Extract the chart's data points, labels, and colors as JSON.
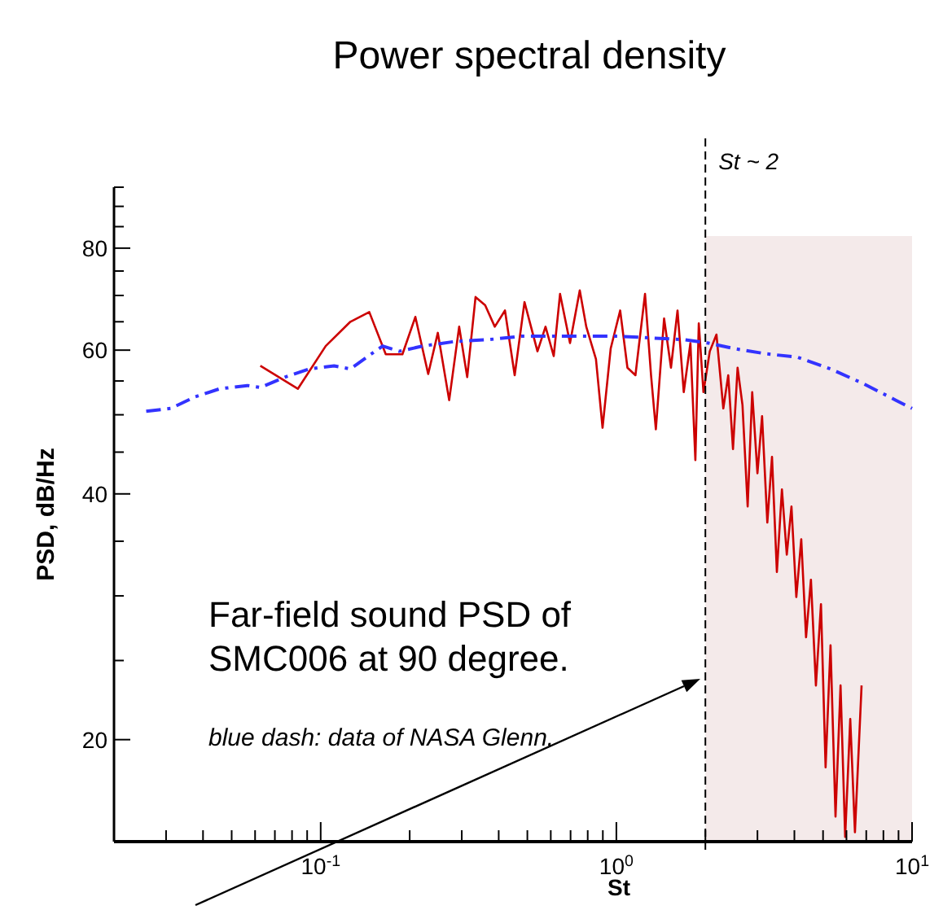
{
  "chart_data": {
    "type": "line",
    "title": "Power spectral density",
    "xlabel": "St",
    "ylabel": "PSD, dB/Hz",
    "log": "xy",
    "xlim": [
      0.02,
      10
    ],
    "ylim": [
      15,
      95
    ],
    "xticks": [
      {
        "value": 0.02,
        "label": null
      },
      {
        "value": 0.03,
        "label": null
      },
      {
        "value": 0.04,
        "label": null
      },
      {
        "value": 0.05,
        "label": null
      },
      {
        "value": 0.06,
        "label": null
      },
      {
        "value": 0.07,
        "label": null
      },
      {
        "value": 0.08,
        "label": null
      },
      {
        "value": 0.09,
        "label": null
      },
      {
        "value": 0.1,
        "label": "10$^{-1}$"
      },
      {
        "value": 0.2,
        "label": null
      },
      {
        "value": 0.3,
        "label": null
      },
      {
        "value": 0.4,
        "label": null
      },
      {
        "value": 0.5,
        "label": null
      },
      {
        "value": 0.6,
        "label": null
      },
      {
        "value": 0.7,
        "label": null
      },
      {
        "value": 0.8,
        "label": null
      },
      {
        "value": 0.9,
        "label": null
      },
      {
        "value": 1,
        "label": "10$^{0}$"
      },
      {
        "value": 2,
        "label": null
      },
      {
        "value": 3,
        "label": null
      },
      {
        "value": 4,
        "label": null
      },
      {
        "value": 5,
        "label": null
      },
      {
        "value": 6,
        "label": null
      },
      {
        "value": 7,
        "label": null
      },
      {
        "value": 8,
        "label": null
      },
      {
        "value": 9,
        "label": null
      },
      {
        "value": 10,
        "label": "10$^{1}$"
      }
    ],
    "yticks": [
      {
        "value": 15,
        "label": null
      },
      20,
      {
        "value": 25,
        "label": null
      },
      {
        "value": 30,
        "label": null
      },
      {
        "value": 35,
        "label": null
      },
      40,
      {
        "value": 45,
        "label": null
      },
      {
        "value": 50,
        "label": null
      },
      {
        "value": 55,
        "label": null
      },
      60,
      {
        "value": 65,
        "label": null
      },
      {
        "value": 70,
        "label": null
      },
      {
        "value": 75,
        "label": null
      },
      80,
      {
        "value": 85,
        "label": null
      },
      {
        "value": 90,
        "label": null
      },
      {
        "value": 95,
        "label": null
      }
    ],
    "series": [
      {
        "color": "#cc0000",
        "line_style": "solid",
        "x": [
          0.0625,
          0.0837,
          0.104,
          0.126,
          0.146,
          0.166,
          0.189,
          0.209,
          0.231,
          0.249,
          0.272,
          0.294,
          0.313,
          0.334,
          0.36,
          0.388,
          0.42,
          0.453,
          0.489,
          0.541,
          0.576,
          0.614,
          0.645,
          0.697,
          0.752,
          0.791,
          0.853,
          0.898,
          0.957,
          1.03,
          1.09,
          1.16,
          1.25,
          1.31,
          1.36,
          1.45,
          1.53,
          1.61,
          1.69,
          1.78,
          1.85,
          1.9,
          1.97,
          2.07,
          2.18,
          2.3,
          2.39,
          2.48,
          2.57,
          2.67,
          2.78,
          2.88,
          3.0,
          3.11,
          3.24,
          3.36,
          3.49,
          3.63,
          3.77,
          3.91,
          4.06,
          4.22,
          4.38,
          4.55,
          4.73,
          4.92,
          5.1,
          5.3,
          5.51,
          5.73,
          5.94,
          6.18,
          6.41,
          6.75
        ],
        "values": [
          57.4,
          53.8,
          60.7,
          65.0,
          66.8,
          59.3,
          59.3,
          65.9,
          56.1,
          63.0,
          52.1,
          64.1,
          55.6,
          69.7,
          68.1,
          64.1,
          67.1,
          55.9,
          68.7,
          59.8,
          64.1,
          59.0,
          70.3,
          61.2,
          71.0,
          64.1,
          58.5,
          48.2,
          60.3,
          67.1,
          57.1,
          55.9,
          70.3,
          55.9,
          48.0,
          65.6,
          57.1,
          67.1,
          53.3,
          61.2,
          44.0,
          64.7,
          53.3,
          59.8,
          62.7,
          50.9,
          55.9,
          45.4,
          57.1,
          51.4,
          38.6,
          53.3,
          42.4,
          49.8,
          36.9,
          44.4,
          32.1,
          40.5,
          33.7,
          38.6,
          29.9,
          35.2,
          26.7,
          31.4,
          23.3,
          29.3,
          18.5,
          26.1,
          16.1,
          23.3,
          15.2,
          21.2,
          15.4,
          23.3
        ]
      },
      {
        "color": "#3333ff",
        "line_style": "dashed",
        "x": [
          0.0257,
          0.0311,
          0.0376,
          0.0455,
          0.0565,
          0.0625,
          0.0757,
          0.0915,
          0.111,
          0.126,
          0.143,
          0.162,
          0.184,
          0.222,
          0.286,
          0.369,
          0.476,
          0.614,
          0.791,
          1.02,
          1.31,
          1.69,
          2.05,
          2.48,
          3.19,
          4.11,
          5.3,
          6.84,
          8.81,
          10
        ],
        "values": [
          50.5,
          50.9,
          52.6,
          53.8,
          54.3,
          54.0,
          55.6,
          56.9,
          57.4,
          56.9,
          58.8,
          60.7,
          59.8,
          60.7,
          61.5,
          61.8,
          62.4,
          62.4,
          62.4,
          62.4,
          62.1,
          61.8,
          61.2,
          60.3,
          59.4,
          58.8,
          56.9,
          54.6,
          52.1,
          50.9
        ]
      }
    ],
    "ref_lines": [
      {
        "axis": "x",
        "value": 2,
        "label": "St ~ 2",
        "line_style": "dashed",
        "color": "#000000"
      }
    ],
    "bands": [
      {
        "axis": "x",
        "from": 2,
        "to": 10,
        "color": "#f4eaea"
      }
    ],
    "annotations": [
      "Far-field sound PSD of\nSMC006 at 90 degree.",
      "blue dash: data of NASA Glenn."
    ]
  }
}
